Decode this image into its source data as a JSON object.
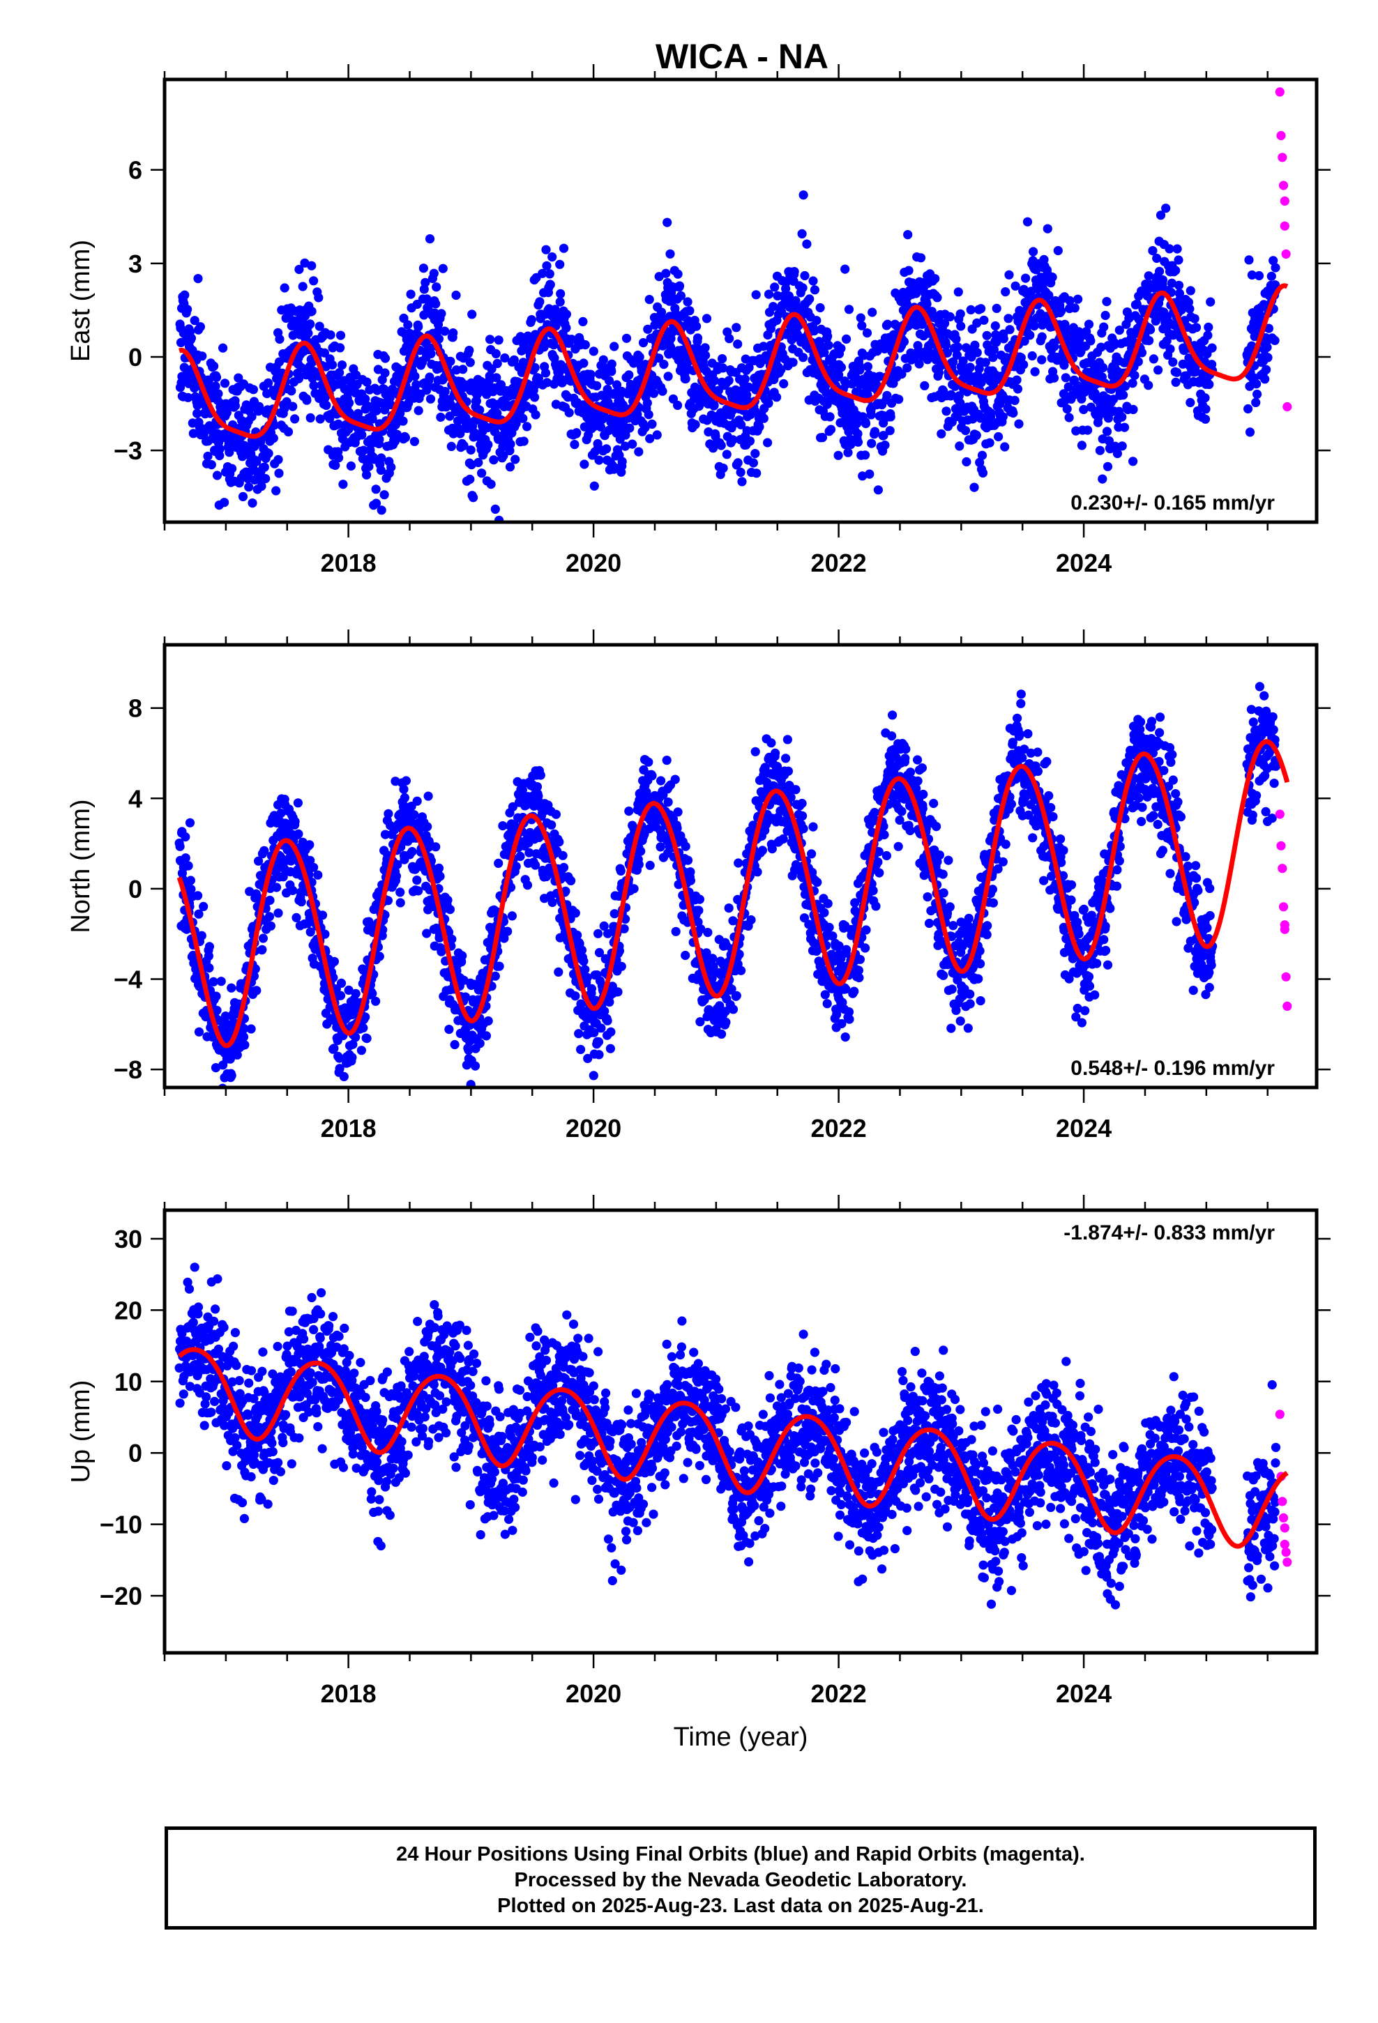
{
  "figure": {
    "title": "WICA - NA",
    "footer": [
      "24 Hour Positions Using Final Orbits (blue) and Rapid Orbits (magenta).",
      "Processed by the Nevada Geodetic Laboratory.",
      "Plotted on 2025-Aug-23. Last data on 2025-Aug-21."
    ]
  },
  "colors": {
    "final_orbits": "#0000ff",
    "rapid_orbits": "#ff00ff",
    "model_fit": "#ff0000",
    "axes": "#000000"
  },
  "chart_data": [
    {
      "type": "scatter",
      "panel": "east",
      "ylabel": "East (mm)",
      "xlabel": "",
      "xlim": [
        2016.5,
        2025.9
      ],
      "ylim": [
        -5.3,
        8.9
      ],
      "yticks": [
        -3,
        0,
        3,
        6
      ],
      "xticks": [
        2018,
        2020,
        2022,
        2024
      ],
      "rate_label": "0.230+/- 0.165 mm/yr",
      "rate_position": "bottom-right",
      "model": {
        "offset": -0.52,
        "slope": 0.23,
        "annual_amp": 1.4,
        "annual_peak": 0.65,
        "semiannual_amp": 0.35,
        "semiannual_peak": 0.62,
        "t0": 2021
      },
      "scatter_sd": 1.05,
      "rapid_orbit_points": {
        "x": [
          2025.6,
          2025.61,
          2025.62,
          2025.63,
          2025.64,
          2025.64,
          2025.65,
          2025.66
        ],
        "y": [
          8.5,
          7.1,
          6.4,
          5.5,
          5.0,
          4.2,
          3.3,
          -1.6
        ]
      }
    },
    {
      "type": "scatter",
      "panel": "north",
      "ylabel": "North (mm)",
      "xlabel": "",
      "xlim": [
        2016.5,
        2025.9
      ],
      "ylim": [
        -8.8,
        10.8
      ],
      "yticks": [
        -8,
        -4,
        0,
        4,
        8
      ],
      "xticks": [
        2018,
        2020,
        2022,
        2024
      ],
      "rate_label": "0.548+/- 0.196 mm/yr",
      "rate_position": "bottom-right",
      "model": {
        "offset": -0.15,
        "slope": 0.548,
        "annual_amp": 4.4,
        "annual_peak": 0.5,
        "semiannual_amp": 0.25,
        "semiannual_peak": 0.3,
        "t0": 2021
      },
      "scatter_sd": 1.15,
      "rapid_orbit_points": {
        "x": [
          2025.6,
          2025.61,
          2025.62,
          2025.63,
          2025.64,
          2025.64,
          2025.65,
          2025.66
        ],
        "y": [
          3.3,
          1.9,
          0.9,
          -0.8,
          -1.6,
          -1.8,
          -3.9,
          -5.2
        ]
      }
    },
    {
      "type": "scatter",
      "panel": "up",
      "ylabel": "Up (mm)",
      "xlabel": "Time (year)",
      "xlim": [
        2016.5,
        2025.9
      ],
      "ylim": [
        -28,
        34
      ],
      "yticks": [
        -20,
        -10,
        0,
        10,
        20,
        30
      ],
      "xticks": [
        2018,
        2020,
        2022,
        2024
      ],
      "rate_label": "-1.874+/- 0.833 mm/yr",
      "rate_position": "top-right",
      "model": {
        "offset": 1.3,
        "slope": -1.874,
        "annual_amp": 5.8,
        "annual_peak": 0.75,
        "semiannual_amp": 0.6,
        "semiannual_peak": 0.5,
        "t0": 2021
      },
      "scatter_sd": 4.6,
      "rapid_orbit_points": {
        "x": [
          2025.6,
          2025.61,
          2025.62,
          2025.63,
          2025.64,
          2025.64,
          2025.65,
          2025.66
        ],
        "y": [
          5.4,
          -3.3,
          -6.8,
          -9.1,
          -10.5,
          -12.8,
          -13.9,
          -15.3
        ]
      }
    }
  ]
}
